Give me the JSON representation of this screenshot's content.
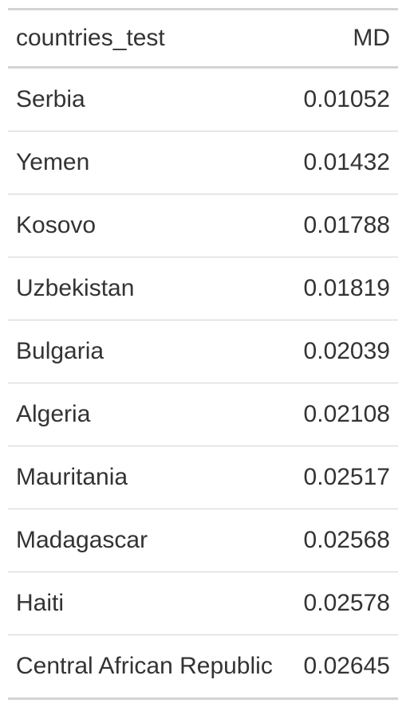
{
  "table": {
    "headers": {
      "country": "countries_test",
      "md": "MD"
    },
    "rows": [
      {
        "country": "Serbia",
        "md": "0.01052"
      },
      {
        "country": "Yemen",
        "md": "0.01432"
      },
      {
        "country": "Kosovo",
        "md": "0.01788"
      },
      {
        "country": "Uzbekistan",
        "md": "0.01819"
      },
      {
        "country": "Bulgaria",
        "md": "0.02039"
      },
      {
        "country": "Algeria",
        "md": "0.02108"
      },
      {
        "country": "Mauritania",
        "md": "0.02517"
      },
      {
        "country": "Madagascar",
        "md": "0.02568"
      },
      {
        "country": "Haiti",
        "md": "0.02578"
      },
      {
        "country": "Central African Republic",
        "md": "0.02645"
      }
    ]
  }
}
